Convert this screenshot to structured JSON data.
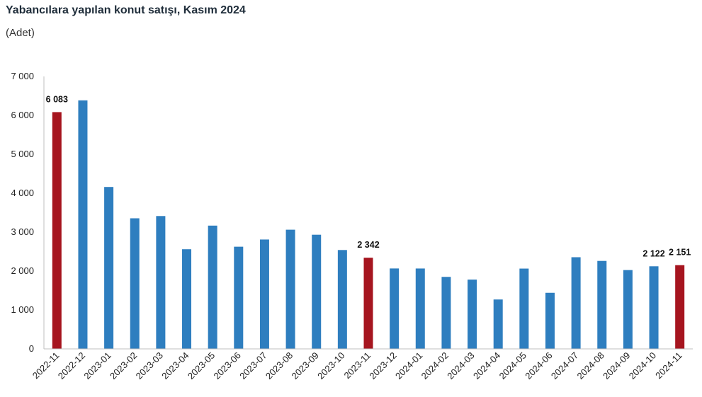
{
  "chart_data": {
    "type": "bar",
    "title": "Yabancılara yapılan konut satışı, Kasım 2024",
    "subtitle": "(Adet)",
    "categories": [
      "2022-11",
      "2022-12",
      "2023-01",
      "2023-02",
      "2023-03",
      "2023-04",
      "2023-05",
      "2023-06",
      "2023-07",
      "2023-08",
      "2023-09",
      "2023-10",
      "2023-11",
      "2023-12",
      "2024-01",
      "2024-02",
      "2024-03",
      "2024-04",
      "2024-05",
      "2024-06",
      "2024-07",
      "2024-08",
      "2024-09",
      "2024-10",
      "2024-11"
    ],
    "values": [
      6083,
      6385,
      4160,
      3355,
      3413,
      2560,
      3167,
      2625,
      2810,
      3062,
      2933,
      2540,
      2342,
      2066,
      2065,
      1850,
      1780,
      1269,
      2063,
      1441,
      2355,
      2260,
      2025,
      2122,
      2151
    ],
    "highlighted": [
      0,
      12,
      24
    ],
    "data_labels": [
      {
        "index": 0,
        "text": "6 083"
      },
      {
        "index": 12,
        "text": "2 342"
      },
      {
        "index": 23,
        "text": "2 122"
      },
      {
        "index": 24,
        "text": "2 151"
      }
    ],
    "ylim": [
      0,
      7000
    ],
    "yticks": [
      {
        "value": 0,
        "label": "0"
      },
      {
        "value": 1000,
        "label": "1 000"
      },
      {
        "value": 2000,
        "label": "2 000"
      },
      {
        "value": 3000,
        "label": "3 000"
      },
      {
        "value": 4000,
        "label": "4 000"
      },
      {
        "value": 5000,
        "label": "5 000"
      },
      {
        "value": 6000,
        "label": "6 000"
      },
      {
        "value": 7000,
        "label": "7 000"
      }
    ],
    "grid": false,
    "colors": {
      "bar": "#2e7ebf",
      "highlight": "#a6151f",
      "axis": "#bfbfbf"
    }
  }
}
